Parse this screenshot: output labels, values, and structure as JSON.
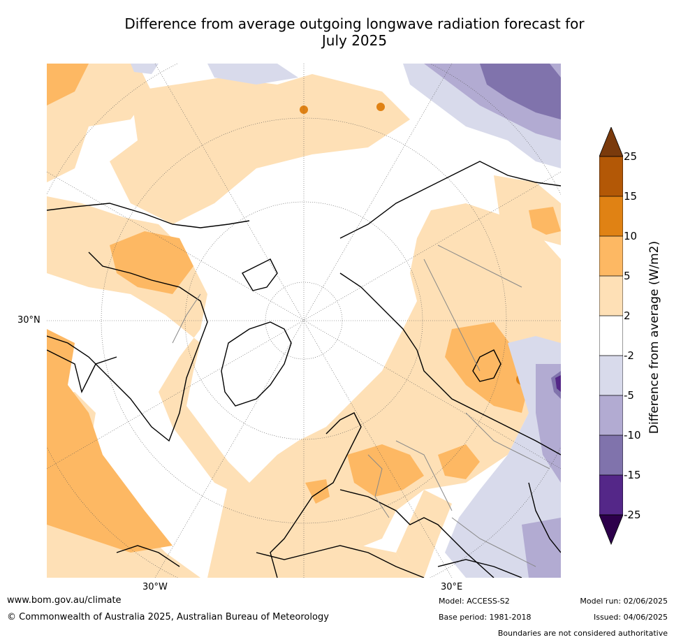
{
  "title_line1": "Difference from average outgoing longwave radiation forecast for",
  "title_line2": "July 2025",
  "map_labels": {
    "lat_30n": "30°N",
    "lon_30w": "30°W",
    "lon_30e": "30°E"
  },
  "colorbar": {
    "title": "Difference from average (W/m2)",
    "ticks": [
      "25",
      "15",
      "10",
      "5",
      "2",
      "-2",
      "-5",
      "-10",
      "-15",
      "-25"
    ],
    "colors": {
      "gt25": "#7a3a0c",
      "15_25": "#b35806",
      "10_15": "#e08214",
      "5_10": "#fdb863",
      "2_5": "#fee0b6",
      "m2_2": "#ffffff",
      "m5_m2": "#d8daeb",
      "m10_m5": "#b2abd2",
      "m15_m10": "#8073ac",
      "m25_m15": "#542788",
      "lt_m25": "#2d004b"
    }
  },
  "footer": {
    "url": "www.bom.gov.au/climate",
    "copyright": "© Commonwealth of Australia 2025, Australian Bureau of Meteorology",
    "model": "Model: ACCESS-S2",
    "base_period": "Base period: 1981-2018",
    "model_run": "Model run: 02/06/2025",
    "issued": "Issued: 04/06/2025",
    "disclaimer": "Boundaries are not considered authoritative"
  }
}
